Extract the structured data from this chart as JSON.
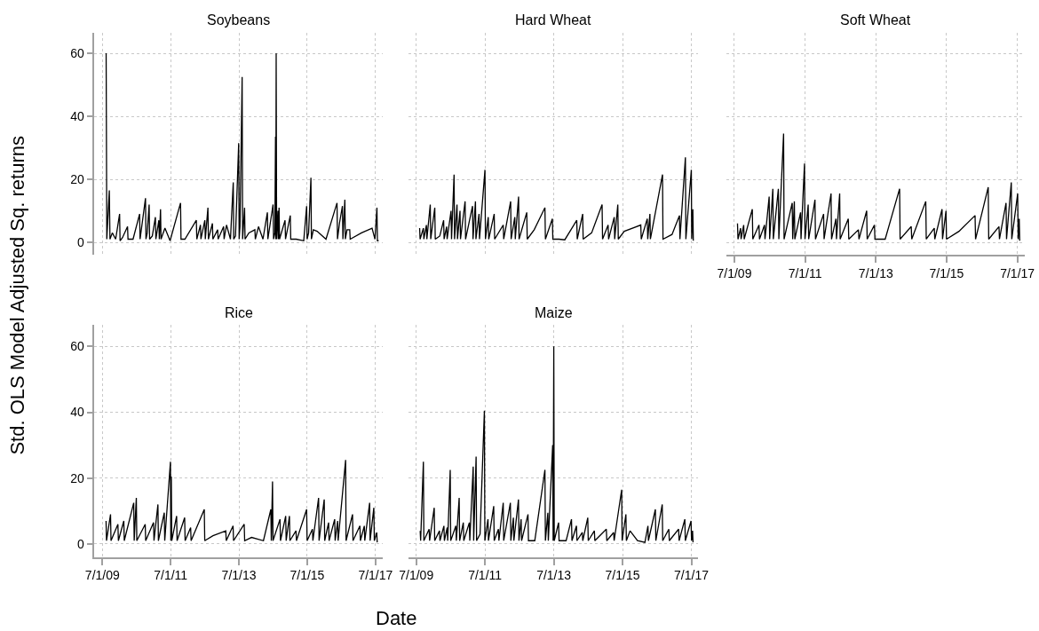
{
  "chart_data": [
    {
      "type": "line",
      "title": "Soybeans",
      "xlabel": "Date",
      "ylabel": "Std. OLS Model Adjusted Sq. returns",
      "color": "#000000",
      "grid": true,
      "tick_labels": "y",
      "xlim": [
        "2009-04-08",
        "2017-09-12"
      ],
      "xticks": [
        {
          "value": "2009-07-01",
          "label": null
        },
        {
          "value": "2011-07-01",
          "label": null
        },
        {
          "value": "2013-07-01",
          "label": null
        },
        {
          "value": "2015-07-01",
          "label": null
        },
        {
          "value": "2017-07-01",
          "label": null
        }
      ],
      "ylim": [
        -4,
        66.5
      ],
      "yticks": [
        0,
        20,
        40,
        60
      ],
      "x": [
        "2009-08-10",
        "2009-08-17",
        "2009-09-13",
        "2009-09-20",
        "2009-10-15",
        "2009-11-20",
        "2010-01-01",
        "2010-01-06",
        "2010-02-01",
        "2010-03-27",
        "2010-04-01",
        "2010-05-25",
        "2010-08-03",
        "2010-08-08",
        "2010-10-05",
        "2010-10-10",
        "2010-10-24",
        "2010-11-13",
        "2010-11-18",
        "2010-12-17",
        "2011-01-19",
        "2011-01-24",
        "2011-02-25",
        "2011-03-02",
        "2011-03-15",
        "2011-03-20",
        "2011-05-01",
        "2011-06-25",
        "2011-10-15",
        "2011-10-20",
        "2011-12-01",
        "2012-04-01",
        "2012-04-06",
        "2012-05-15",
        "2012-05-20",
        "2012-07-01",
        "2012-07-06",
        "2012-08-03",
        "2012-08-08",
        "2012-09-20",
        "2012-09-25",
        "2012-11-15",
        "2012-11-20",
        "2013-01-18",
        "2013-01-23",
        "2013-02-18",
        "2013-04-01",
        "2013-05-01",
        "2013-05-06",
        "2013-05-25",
        "2013-06-28",
        "2013-07-03",
        "2013-07-12",
        "2013-08-04",
        "2013-08-09",
        "2013-08-30",
        "2013-09-04",
        "2013-10-15",
        "2013-12-18",
        "2013-12-23",
        "2014-01-26",
        "2014-03-15",
        "2014-05-01",
        "2014-05-06",
        "2014-07-01",
        "2014-07-06",
        "2014-07-20",
        "2014-07-27",
        "2014-07-30",
        "2014-08-03",
        "2014-08-08",
        "2014-08-22",
        "2014-08-26",
        "2014-09-03",
        "2014-09-08",
        "2014-11-06",
        "2014-11-11",
        "2015-01-01",
        "2015-01-06",
        "2015-03-06",
        "2015-05-25",
        "2015-06-25",
        "2015-06-30",
        "2015-07-16",
        "2015-08-10",
        "2015-08-15",
        "2015-09-05",
        "2015-10-15",
        "2016-01-18",
        "2016-05-15",
        "2016-05-20",
        "2016-06-10",
        "2016-07-12",
        "2016-07-17",
        "2016-08-07",
        "2016-08-12",
        "2016-08-30",
        "2016-09-28",
        "2016-10-03",
        "2017-02-01",
        "2017-05-25",
        "2017-06-25",
        "2017-07-16",
        "2017-07-21",
        "2017-08-03"
      ],
      "values": [
        60,
        1,
        16.5,
        1,
        3,
        1,
        9,
        0.5,
        1.5,
        5,
        1,
        1,
        9,
        1,
        14,
        1,
        3,
        12,
        1,
        2,
        8,
        1,
        7,
        1,
        10.5,
        1,
        4.5,
        0.5,
        12.5,
        1,
        1,
        7,
        1,
        5.5,
        1,
        7,
        1,
        11,
        1,
        6,
        1,
        4,
        1,
        5,
        1,
        5.5,
        1,
        19,
        1,
        2,
        31.5,
        1,
        5,
        52.5,
        1,
        11,
        1,
        3,
        4,
        1,
        5,
        1,
        9.5,
        1,
        12,
        1,
        3,
        33.5,
        1,
        60,
        1,
        10,
        1,
        11,
        1,
        7,
        1,
        8.5,
        1,
        1,
        0.5,
        11.5,
        1,
        3,
        20.5,
        1,
        4,
        3.5,
        1,
        12.5,
        1,
        6,
        11.5,
        1,
        13.5,
        1,
        4,
        4,
        1,
        3,
        4.5,
        1,
        11,
        0.5,
        0.5
      ]
    },
    {
      "type": "line",
      "title": "Hard Wheat",
      "color": "#000000",
      "grid": true,
      "tick_labels": false,
      "xlim": [
        "2009-04-08",
        "2017-09-12"
      ],
      "xticks": [
        {
          "value": "2009-07-01",
          "label": null
        },
        {
          "value": "2011-07-01",
          "label": null
        },
        {
          "value": "2013-07-01",
          "label": null
        },
        {
          "value": "2015-07-01",
          "label": null
        },
        {
          "value": "2017-07-01",
          "label": null
        }
      ],
      "ylim": [
        -4,
        66.5
      ],
      "yticks": [
        0,
        20,
        40,
        60
      ],
      "x": [
        "2009-08-06",
        "2009-08-11",
        "2009-09-15",
        "2009-09-20",
        "2009-10-17",
        "2009-10-22",
        "2009-11-27",
        "2009-12-02",
        "2010-01-14",
        "2010-01-19",
        "2010-03-08",
        "2010-04-18",
        "2010-04-23",
        "2010-05-20",
        "2010-05-25",
        "2010-07-06",
        "2010-07-11",
        "2010-08-07",
        "2010-08-12",
        "2010-09-07",
        "2010-09-12",
        "2010-10-09",
        "2010-10-14",
        "2010-12-02",
        "2010-12-07",
        "2011-02-19",
        "2011-02-24",
        "2011-03-22",
        "2011-03-27",
        "2011-04-29",
        "2011-05-04",
        "2011-07-01",
        "2011-07-06",
        "2011-08-05",
        "2011-08-10",
        "2011-10-07",
        "2011-10-12",
        "2012-01-11",
        "2012-01-16",
        "2012-03-30",
        "2012-04-04",
        "2012-05-13",
        "2012-05-18",
        "2012-06-22",
        "2012-06-27",
        "2012-09-17",
        "2012-09-22",
        "2012-12-05",
        "2013-03-29",
        "2013-04-03",
        "2013-06-16",
        "2013-06-21",
        "2013-08-24",
        "2013-10-26",
        "2014-03-02",
        "2014-03-07",
        "2014-05-04",
        "2014-05-09",
        "2014-08-07",
        "2014-11-26",
        "2014-12-01",
        "2015-01-29",
        "2015-02-03",
        "2015-04-04",
        "2015-04-09",
        "2015-05-12",
        "2015-05-17",
        "2015-07-20",
        "2016-01-11",
        "2016-01-16",
        "2016-03-20",
        "2016-03-25",
        "2016-04-17",
        "2016-04-22",
        "2016-08-29",
        "2016-09-03",
        "2016-12-08",
        "2017-02-25",
        "2017-03-02",
        "2017-04-29",
        "2017-05-04",
        "2017-07-01",
        "2017-07-05",
        "2017-07-17",
        "2017-07-22"
      ],
      "values": [
        4.5,
        1,
        4.5,
        1,
        5.5,
        1,
        12,
        1,
        11,
        1,
        2,
        7,
        1,
        5,
        1,
        10,
        1,
        21.5,
        1,
        12,
        1,
        10,
        1,
        13,
        1,
        11.5,
        1,
        13,
        1,
        9,
        1,
        23,
        1,
        8,
        1,
        9,
        1,
        5.5,
        1,
        13,
        1,
        8,
        1,
        14.5,
        1,
        9.5,
        1,
        4,
        11,
        1,
        7.5,
        1,
        1,
        0.8,
        7,
        1,
        9,
        1,
        3,
        12,
        1,
        5.5,
        1,
        8,
        1,
        12,
        1,
        3.5,
        5.5,
        1,
        7.5,
        1,
        9,
        1,
        21.5,
        1,
        2.5,
        8.5,
        1,
        27,
        1,
        23,
        1,
        10.5,
        0.5
      ]
    },
    {
      "type": "line",
      "title": "Soft Wheat",
      "color": "#000000",
      "grid": true,
      "tick_labels": "x",
      "xlim": [
        "2009-04-08",
        "2017-09-12"
      ],
      "xticks": [
        {
          "value": "2009-07-01",
          "label": "7/1/09"
        },
        {
          "value": "2011-07-01",
          "label": "7/1/11"
        },
        {
          "value": "2013-07-01",
          "label": "7/1/13"
        },
        {
          "value": "2015-07-01",
          "label": "7/1/15"
        },
        {
          "value": "2017-07-01",
          "label": "7/1/17"
        }
      ],
      "ylim": [
        -4,
        66.5
      ],
      "yticks": [
        0,
        20,
        40,
        60
      ],
      "x": [
        "2009-08-02",
        "2009-08-07",
        "2009-09-03",
        "2009-09-08",
        "2009-10-05",
        "2009-10-10",
        "2010-01-02",
        "2010-01-07",
        "2010-03-12",
        "2010-03-17",
        "2010-05-08",
        "2010-05-13",
        "2010-06-25",
        "2010-06-30",
        "2010-08-02",
        "2010-08-07",
        "2010-09-28",
        "2010-10-03",
        "2010-11-21",
        "2010-11-26",
        "2011-02-18",
        "2011-02-23",
        "2011-03-12",
        "2011-03-17",
        "2011-05-15",
        "2011-05-20",
        "2011-06-25",
        "2011-06-30",
        "2011-08-02",
        "2011-08-07",
        "2011-10-11",
        "2011-10-16",
        "2012-01-08",
        "2012-01-13",
        "2012-03-25",
        "2012-03-30",
        "2012-05-15",
        "2012-05-20",
        "2012-06-22",
        "2012-06-27",
        "2012-09-19",
        "2012-09-24",
        "2013-01-02",
        "2013-01-07",
        "2013-03-28",
        "2013-04-02",
        "2013-06-16",
        "2013-06-21",
        "2013-10-05",
        "2014-03-03",
        "2014-03-08",
        "2014-07-01",
        "2014-07-06",
        "2014-11-28",
        "2014-12-03",
        "2015-02-24",
        "2015-03-01",
        "2015-05-15",
        "2015-05-20",
        "2015-06-25",
        "2015-06-30",
        "2015-11-06",
        "2016-04-20",
        "2016-04-25",
        "2016-09-03",
        "2016-09-08",
        "2016-12-23",
        "2016-12-28",
        "2017-03-06",
        "2017-03-11",
        "2017-04-29",
        "2017-05-04",
        "2017-07-04",
        "2017-07-09",
        "2017-07-20",
        "2017-07-25"
      ],
      "values": [
        6,
        1,
        4.5,
        1,
        5.5,
        1,
        10.5,
        1,
        5.5,
        1,
        5.5,
        1,
        14.5,
        1,
        17,
        1,
        17,
        1,
        34.5,
        1,
        12.5,
        1,
        13,
        1,
        9.5,
        1,
        25,
        1,
        12,
        1,
        13.5,
        1,
        9,
        1,
        15.5,
        1,
        7.5,
        1,
        15.5,
        1,
        7.5,
        1,
        4,
        1,
        10,
        1,
        5.5,
        1,
        1,
        17,
        1,
        5,
        1,
        13,
        1,
        4.5,
        1,
        10.5,
        1,
        10,
        1,
        3.5,
        8.5,
        1,
        17.5,
        1,
        5,
        1,
        12.5,
        1,
        19,
        1,
        15.5,
        1,
        7.5,
        0.5
      ]
    },
    {
      "type": "line",
      "title": "Rice",
      "color": "#000000",
      "grid": true,
      "xlim": [
        "2009-04-08",
        "2017-09-12"
      ],
      "xticks": [
        {
          "value": "2009-07-01",
          "label": "7/1/09"
        },
        {
          "value": "2011-07-01",
          "label": "7/1/11"
        },
        {
          "value": "2013-07-01",
          "label": "7/1/13"
        },
        {
          "value": "2015-07-01",
          "label": "7/1/15"
        },
        {
          "value": "2017-07-01",
          "label": "7/1/17"
        }
      ],
      "ylim": [
        -4,
        66.5
      ],
      "yticks": [
        0,
        20,
        40,
        60
      ],
      "x": [
        "2009-08-09",
        "2009-08-14",
        "2009-09-26",
        "2009-10-01",
        "2009-12-14",
        "2009-12-19",
        "2010-02-15",
        "2010-02-20",
        "2010-06-01",
        "2010-06-06",
        "2010-06-29",
        "2010-07-04",
        "2010-10-02",
        "2010-10-07",
        "2010-12-30",
        "2011-01-04",
        "2011-02-15",
        "2011-02-20",
        "2011-04-24",
        "2011-04-29",
        "2011-06-29",
        "2011-07-03",
        "2011-07-08",
        "2011-07-13",
        "2011-09-03",
        "2011-09-08",
        "2011-11-28",
        "2011-12-03",
        "2012-01-31",
        "2012-02-05",
        "2012-06-25",
        "2012-06-30",
        "2012-09-26",
        "2013-02-10",
        "2013-02-15",
        "2013-04-29",
        "2013-05-04",
        "2013-08-26",
        "2013-08-31",
        "2013-11-13",
        "2014-03-20",
        "2014-06-07",
        "2014-06-12",
        "2014-06-25",
        "2014-06-30",
        "2014-09-13",
        "2014-09-18",
        "2014-11-13",
        "2014-11-18",
        "2014-12-23",
        "2014-12-28",
        "2015-03-03",
        "2015-03-08",
        "2015-06-25",
        "2015-06-30",
        "2015-08-26",
        "2015-08-31",
        "2015-10-31",
        "2015-11-05",
        "2015-12-30",
        "2016-01-04",
        "2016-02-15",
        "2016-02-20",
        "2016-04-20",
        "2016-04-25",
        "2016-05-22",
        "2016-05-27",
        "2016-08-15",
        "2016-08-20",
        "2016-10-28",
        "2016-11-02",
        "2017-01-15",
        "2017-01-20",
        "2017-03-03",
        "2017-03-08",
        "2017-04-29",
        "2017-05-04",
        "2017-06-13",
        "2017-06-18",
        "2017-07-14",
        "2017-07-19"
      ],
      "values": [
        7,
        1,
        9,
        1,
        6,
        1,
        7,
        1,
        12.5,
        1,
        14,
        1,
        6,
        1,
        6.5,
        1,
        12,
        1,
        9.5,
        1,
        25,
        1,
        20.5,
        1,
        8.5,
        1,
        8,
        1,
        5,
        1,
        10.5,
        1,
        2.5,
        4,
        1,
        5.5,
        1,
        6,
        1,
        2,
        1,
        10.5,
        1,
        19,
        1,
        7.5,
        1,
        8.5,
        1,
        8.5,
        1,
        4,
        1,
        10.5,
        1,
        4.5,
        1,
        14,
        1,
        13.5,
        1,
        6.5,
        1,
        7.5,
        1,
        7,
        1,
        25.5,
        1,
        9,
        1,
        5.5,
        1,
        5.5,
        1,
        12.5,
        1,
        11,
        1,
        3.5,
        0.5
      ]
    },
    {
      "type": "line",
      "title": "Maize",
      "color": "#000000",
      "grid": true,
      "tick_labels": "x",
      "xlim": [
        "2009-04-08",
        "2017-09-12"
      ],
      "xticks": [
        {
          "value": "2009-07-01",
          "label": "7/1/09"
        },
        {
          "value": "2011-07-01",
          "label": "7/1/11"
        },
        {
          "value": "2013-07-01",
          "label": "7/1/13"
        },
        {
          "value": "2015-07-01",
          "label": "7/1/15"
        },
        {
          "value": "2017-07-01",
          "label": "7/1/17"
        }
      ],
      "ylim": [
        -4,
        66.5
      ],
      "yticks": [
        0,
        20,
        40,
        60
      ],
      "x": [
        "2009-08-12",
        "2009-08-17",
        "2009-09-15",
        "2009-09-20",
        "2009-11-15",
        "2009-11-20",
        "2010-01-08",
        "2010-01-13",
        "2010-03-05",
        "2010-03-10",
        "2010-04-21",
        "2010-04-26",
        "2010-05-26",
        "2010-05-31",
        "2010-06-27",
        "2010-07-02",
        "2010-08-26",
        "2010-08-31",
        "2010-09-30",
        "2010-10-05",
        "2010-11-13",
        "2010-11-18",
        "2011-01-16",
        "2011-01-21",
        "2011-02-26",
        "2011-03-03",
        "2011-03-29",
        "2011-04-03",
        "2011-05-10",
        "2011-06-25",
        "2011-06-30",
        "2011-08-02",
        "2011-08-07",
        "2011-10-02",
        "2011-10-07",
        "2011-11-21",
        "2011-11-26",
        "2012-01-11",
        "2012-01-16",
        "2012-03-27",
        "2012-04-01",
        "2012-04-28",
        "2012-05-03",
        "2012-06-21",
        "2012-06-26",
        "2012-07-19",
        "2012-07-24",
        "2012-09-30",
        "2012-10-05",
        "2012-12-11",
        "2013-03-29",
        "2013-04-03",
        "2013-04-29",
        "2013-05-04",
        "2013-06-19",
        "2013-06-24",
        "2013-07-01",
        "2013-07-06",
        "2013-08-21",
        "2013-08-26",
        "2013-11-09",
        "2014-01-05",
        "2014-01-10",
        "2014-02-27",
        "2014-03-04",
        "2014-04-30",
        "2014-05-05",
        "2014-06-27",
        "2014-07-02",
        "2014-09-05",
        "2014-09-10",
        "2015-01-10",
        "2015-01-15",
        "2015-03-29",
        "2015-04-03",
        "2015-06-22",
        "2015-06-27",
        "2015-08-06",
        "2015-08-11",
        "2015-09-19",
        "2015-12-07",
        "2016-02-24",
        "2016-03-27",
        "2016-04-01",
        "2016-06-14",
        "2016-06-19",
        "2016-08-26",
        "2016-08-31",
        "2016-11-04",
        "2016-11-09",
        "2017-02-16",
        "2017-02-21",
        "2017-04-23",
        "2017-04-28",
        "2017-06-28",
        "2017-07-03",
        "2017-07-14",
        "2017-07-19"
      ],
      "values": [
        4,
        1,
        25,
        1,
        4.5,
        1,
        11,
        1,
        4,
        1,
        5.5,
        1,
        5,
        1,
        22.5,
        1,
        5.5,
        1,
        14,
        1,
        6.5,
        1,
        6.5,
        1,
        23.5,
        1,
        26.5,
        1,
        3,
        40.5,
        1,
        7.5,
        1,
        11.5,
        1,
        4.5,
        1,
        12.5,
        1,
        12.5,
        1,
        8,
        1,
        13.5,
        1,
        7.5,
        1,
        9,
        1,
        1,
        22.5,
        1,
        9.5,
        1,
        30,
        1,
        60,
        1,
        6.5,
        1,
        1,
        7.5,
        1,
        5.5,
        1,
        3.5,
        1,
        8,
        1,
        4,
        1,
        4.5,
        1,
        3.5,
        1,
        16.5,
        1,
        9,
        1,
        4,
        1,
        0.5,
        5.5,
        1,
        10.5,
        1,
        12,
        1,
        4.5,
        1,
        4.5,
        1,
        7.5,
        1,
        7,
        1,
        4,
        0.5
      ]
    }
  ]
}
